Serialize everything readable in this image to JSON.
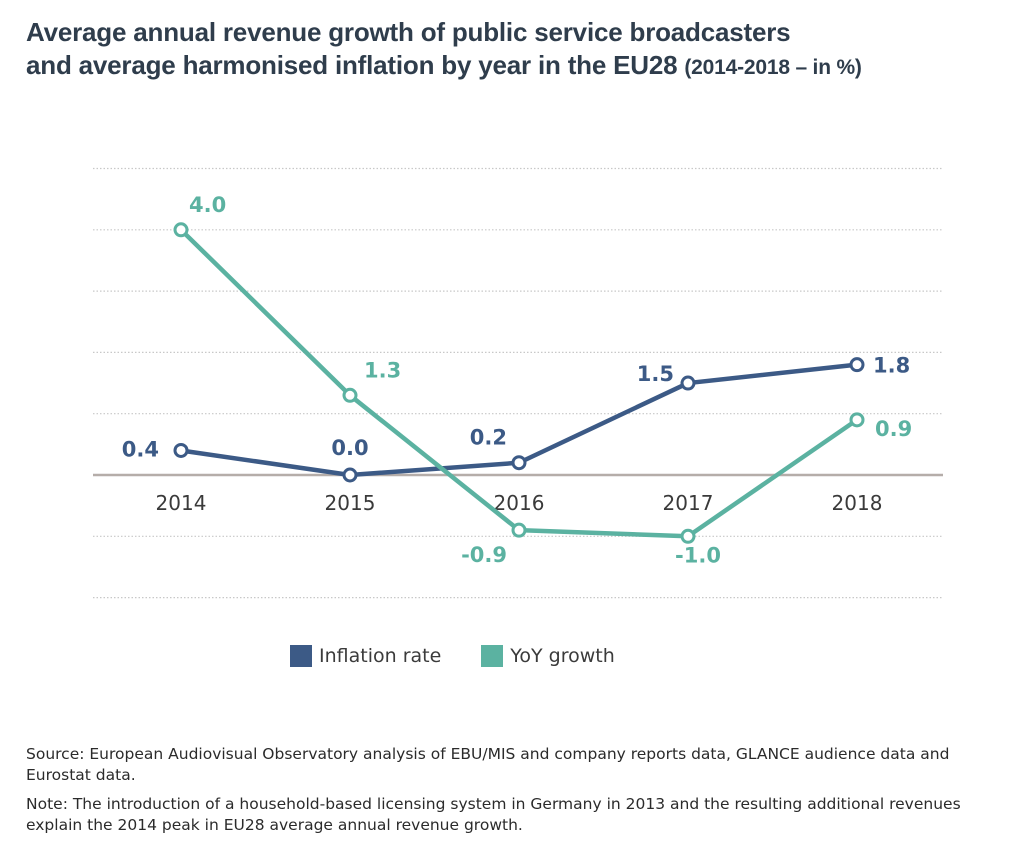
{
  "title": {
    "main": "Average annual revenue growth of public service broadcasters and average harmonised inflation by year in the EU28",
    "line1": "Average annual revenue growth of public service broadcasters",
    "line2": "and average harmonised inflation by year in the EU28",
    "subtitle": "(2014-2018 – in %)"
  },
  "colors": {
    "inflation": "#3c5a86",
    "yoy": "#5bb2a1",
    "baseline": "#b5ada9",
    "grid": "#c8c8c8"
  },
  "chart_data": {
    "type": "line",
    "title": "Average annual revenue growth of public service broadcasters and average harmonised inflation by year in the EU28 (2014-2018 – in %)",
    "xlabel": "",
    "ylabel": "",
    "x": [
      "2014",
      "2015",
      "2016",
      "2017",
      "2018"
    ],
    "ylim": [
      -2,
      5
    ],
    "gridlines": [
      -2,
      -1,
      1,
      2,
      3,
      4,
      5
    ],
    "grid": true,
    "legend_position": "bottom",
    "series": [
      {
        "name": "Inflation rate",
        "key": "inflation",
        "values": [
          0.4,
          0.0,
          0.2,
          1.5,
          1.8
        ],
        "labels": [
          "0.4",
          "0.0",
          "0.2",
          "1.5",
          "1.8"
        ]
      },
      {
        "name": "YoY growth",
        "key": "yoy",
        "values": [
          4.0,
          1.3,
          -0.9,
          -1.0,
          0.9
        ],
        "labels": [
          "4.0",
          "1.3",
          "-0.9",
          "-1.0",
          "0.9"
        ]
      }
    ]
  },
  "legend": [
    {
      "label": "Inflation rate",
      "key": "inflation"
    },
    {
      "label": "YoY growth",
      "key": "yoy"
    }
  ],
  "footer": {
    "source": "Source: European Audiovisual Observatory analysis of EBU/MIS and company reports data, GLANCE audience data and Eurostat data.",
    "note": "Note: The introduction of a household-based licensing system in Germany in 2013 and the resulting additional revenues explain the 2014 peak in  EU28 average annual revenue growth."
  }
}
